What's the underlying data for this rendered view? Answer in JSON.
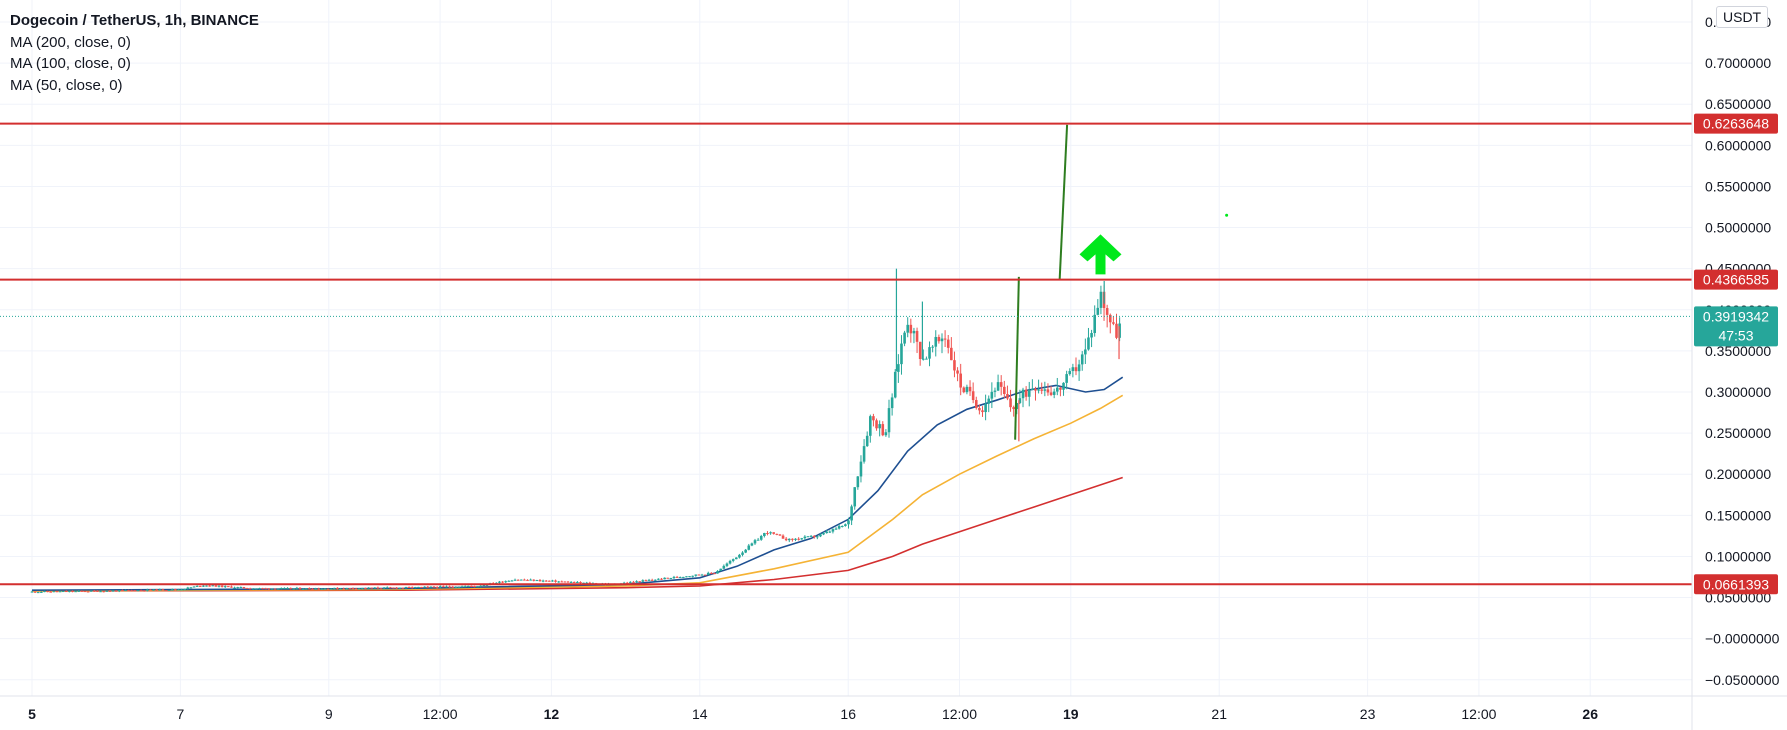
{
  "legend": {
    "title": "Dogecoin / TetherUS, 1h, BINANCE",
    "ma200": "MA (200, close, 0)",
    "ma100": "MA (100, close, 0)",
    "ma50": "MA (50, close, 0)"
  },
  "currency_badge": "USDT",
  "colors": {
    "up": "#26a69a",
    "down": "#ef5350",
    "ma200": "#d32f2f",
    "ma100": "#f5b335",
    "ma50": "#1e4f91",
    "level_line": "#d32f2f",
    "current_price": "#26a69a",
    "arrow": "#00e81c",
    "trendline": "#2e7d1f"
  },
  "chart_data": {
    "type": "candlestick",
    "title": "Dogecoin / TetherUS, 1h, BINANCE",
    "ylim": [
      -0.06,
      0.75
    ],
    "y_ticks": [
      "−0.0500000",
      "−0.0000000",
      "0.0500000",
      "0.1000000",
      "0.1500000",
      "0.2000000",
      "0.2500000",
      "0.3000000",
      "0.3500000",
      "0.4000000",
      "0.4500000",
      "0.5000000",
      "0.5500000",
      "0.6000000",
      "0.6500000",
      "0.7000000",
      "0.7500000"
    ],
    "y_tick_values": [
      -0.05,
      0,
      0.05,
      0.1,
      0.15,
      0.2,
      0.25,
      0.3,
      0.35,
      0.4,
      0.45,
      0.5,
      0.55,
      0.6,
      0.65,
      0.7,
      0.75
    ],
    "x_ticks": [
      {
        "label": "5",
        "bold": true
      },
      {
        "label": "7",
        "bold": false
      },
      {
        "label": "9",
        "bold": false
      },
      {
        "label": "12:00",
        "bold": false
      },
      {
        "label": "12",
        "bold": true
      },
      {
        "label": "14",
        "bold": false
      },
      {
        "label": "16",
        "bold": false
      },
      {
        "label": "12:00",
        "bold": false
      },
      {
        "label": "19",
        "bold": true
      },
      {
        "label": "21",
        "bold": false
      },
      {
        "label": "23",
        "bold": false
      },
      {
        "label": "12:00",
        "bold": false
      },
      {
        "label": "26",
        "bold": true
      }
    ],
    "x_tick_days": [
      5,
      7,
      9,
      10.5,
      12,
      14,
      16,
      17.5,
      19,
      21,
      23,
      24.5,
      26
    ],
    "price_path": [
      [
        5.0,
        0.057
      ],
      [
        6.0,
        0.058
      ],
      [
        7.0,
        0.06
      ],
      [
        7.3,
        0.065
      ],
      [
        8.0,
        0.061
      ],
      [
        9.0,
        0.061
      ],
      [
        10.0,
        0.062
      ],
      [
        11.0,
        0.064
      ],
      [
        11.5,
        0.072
      ],
      [
        12.0,
        0.07
      ],
      [
        12.8,
        0.066
      ],
      [
        13.5,
        0.073
      ],
      [
        14.2,
        0.08
      ],
      [
        14.5,
        0.1
      ],
      [
        14.9,
        0.13
      ],
      [
        15.2,
        0.12
      ],
      [
        15.6,
        0.125
      ],
      [
        16.0,
        0.14
      ],
      [
        16.1,
        0.19
      ],
      [
        16.3,
        0.27
      ],
      [
        16.5,
        0.25
      ],
      [
        16.7,
        0.35
      ],
      [
        16.8,
        0.39
      ],
      [
        17.0,
        0.34
      ],
      [
        17.3,
        0.37
      ],
      [
        17.5,
        0.31
      ],
      [
        17.8,
        0.28
      ],
      [
        18.0,
        0.31
      ],
      [
        18.2,
        0.28
      ],
      [
        18.5,
        0.31
      ],
      [
        18.8,
        0.3
      ],
      [
        19.0,
        0.32
      ],
      [
        19.2,
        0.35
      ],
      [
        19.4,
        0.42
      ],
      [
        19.6,
        0.37
      ],
      [
        19.7,
        0.39
      ]
    ],
    "wicks": [
      [
        16.65,
        0.45
      ],
      [
        17.0,
        0.41
      ],
      [
        18.3,
        0.24
      ],
      [
        19.45,
        0.435
      ],
      [
        19.65,
        0.34
      ]
    ],
    "series": [
      {
        "name": "MA (200, close, 0)",
        "points": [
          [
            5.0,
            0.058
          ],
          [
            10.0,
            0.059
          ],
          [
            13.0,
            0.062
          ],
          [
            14.0,
            0.064
          ],
          [
            15.0,
            0.072
          ],
          [
            16.0,
            0.083
          ],
          [
            16.6,
            0.1
          ],
          [
            17.0,
            0.115
          ],
          [
            17.5,
            0.13
          ],
          [
            18.0,
            0.145
          ],
          [
            18.5,
            0.16
          ],
          [
            19.0,
            0.175
          ],
          [
            19.7,
            0.196
          ]
        ]
      },
      {
        "name": "MA (100, close, 0)",
        "points": [
          [
            5.0,
            0.058
          ],
          [
            10.0,
            0.06
          ],
          [
            13.0,
            0.064
          ],
          [
            14.0,
            0.068
          ],
          [
            15.0,
            0.085
          ],
          [
            16.0,
            0.105
          ],
          [
            16.6,
            0.145
          ],
          [
            17.0,
            0.175
          ],
          [
            17.5,
            0.2
          ],
          [
            18.0,
            0.222
          ],
          [
            18.5,
            0.243
          ],
          [
            19.0,
            0.262
          ],
          [
            19.4,
            0.28
          ],
          [
            19.7,
            0.296
          ]
        ]
      },
      {
        "name": "MA (50, close, 0)",
        "points": [
          [
            5.0,
            0.059
          ],
          [
            10.0,
            0.061
          ],
          [
            13.0,
            0.066
          ],
          [
            14.0,
            0.074
          ],
          [
            14.5,
            0.088
          ],
          [
            15.0,
            0.108
          ],
          [
            15.5,
            0.122
          ],
          [
            16.0,
            0.145
          ],
          [
            16.4,
            0.18
          ],
          [
            16.8,
            0.228
          ],
          [
            17.2,
            0.26
          ],
          [
            17.6,
            0.279
          ],
          [
            18.0,
            0.29
          ],
          [
            18.4,
            0.302
          ],
          [
            18.8,
            0.308
          ],
          [
            19.2,
            0.3
          ],
          [
            19.45,
            0.303
          ],
          [
            19.7,
            0.318
          ]
        ]
      }
    ],
    "horizontal_levels": [
      {
        "value": 0.6263648,
        "label": "0.6263648"
      },
      {
        "value": 0.4366585,
        "label": "0.4366585"
      },
      {
        "value": 0.0661393,
        "label": "0.0661393"
      }
    ],
    "current_price": {
      "value": 0.3919342,
      "label": "0.3919342",
      "countdown": "47:53"
    },
    "annotations": [
      {
        "type": "trendline",
        "from": [
          18.25,
          0.242
        ],
        "to": [
          18.3,
          0.44
        ]
      },
      {
        "type": "trendline",
        "from": [
          18.85,
          0.437
        ],
        "to": [
          18.95,
          0.625
        ]
      },
      {
        "type": "arrow-up",
        "at": [
          19.4,
          0.46
        ]
      },
      {
        "type": "dot",
        "at": [
          21.1,
          0.515
        ]
      }
    ],
    "grid": true,
    "legend_position": "top-left"
  }
}
